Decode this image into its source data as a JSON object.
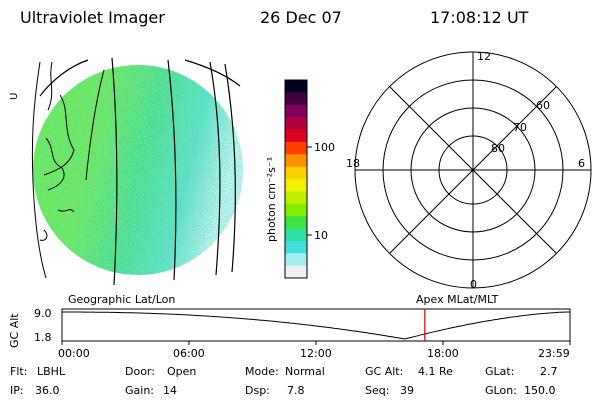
{
  "header": {
    "instrument": "Ultraviolet Imager",
    "date": "26 Dec 07",
    "time": "17:08:12 UT"
  },
  "left_panel": {
    "side_label": "U",
    "caption": "Geographic Lat/Lon"
  },
  "colorbar": {
    "label": "photon cm⁻²s⁻¹",
    "ticks": [
      "100",
      "10"
    ],
    "colors": [
      "#000020",
      "#400040",
      "#800060",
      "#b00040",
      "#e00020",
      "#ff4000",
      "#ff9000",
      "#ffd000",
      "#f0f000",
      "#c0f000",
      "#80f000",
      "#40e040",
      "#30e0a0",
      "#40e0e0",
      "#a0f0f0",
      "#f0f0f0"
    ]
  },
  "polar": {
    "caption": "Apex MLat/MLT",
    "mlt_labels": {
      "top": "12",
      "left": "18",
      "right": "6",
      "bottom": "0"
    },
    "lat_labels": [
      "60",
      "70",
      "80"
    ]
  },
  "altitude_plot": {
    "ylabel": "GC Alt",
    "yticks": [
      "9.0",
      "1.8"
    ],
    "xticks": [
      "00:00",
      "06:00",
      "12:00",
      "18:00",
      "23:59"
    ],
    "current_time_hours": 17.14
  },
  "status": {
    "filter_label": "Flt:",
    "filter": "LBHL",
    "ip_label": "IP:",
    "ip": "36.0",
    "door_label": "Door:",
    "door": "Open",
    "gain_label": "Gain:",
    "gain": "14",
    "mode_label": "Mode:",
    "mode": "Normal",
    "dsp_label": "Dsp:",
    "dsp": "7.8",
    "gcalt_label": "GC Alt:",
    "gcalt": "4.1 Re",
    "seq_label": "Seq:",
    "seq": "39",
    "glat_label": "GLat:",
    "glat": "2.7",
    "glon_label": "GLon:",
    "glon": "150.0"
  }
}
